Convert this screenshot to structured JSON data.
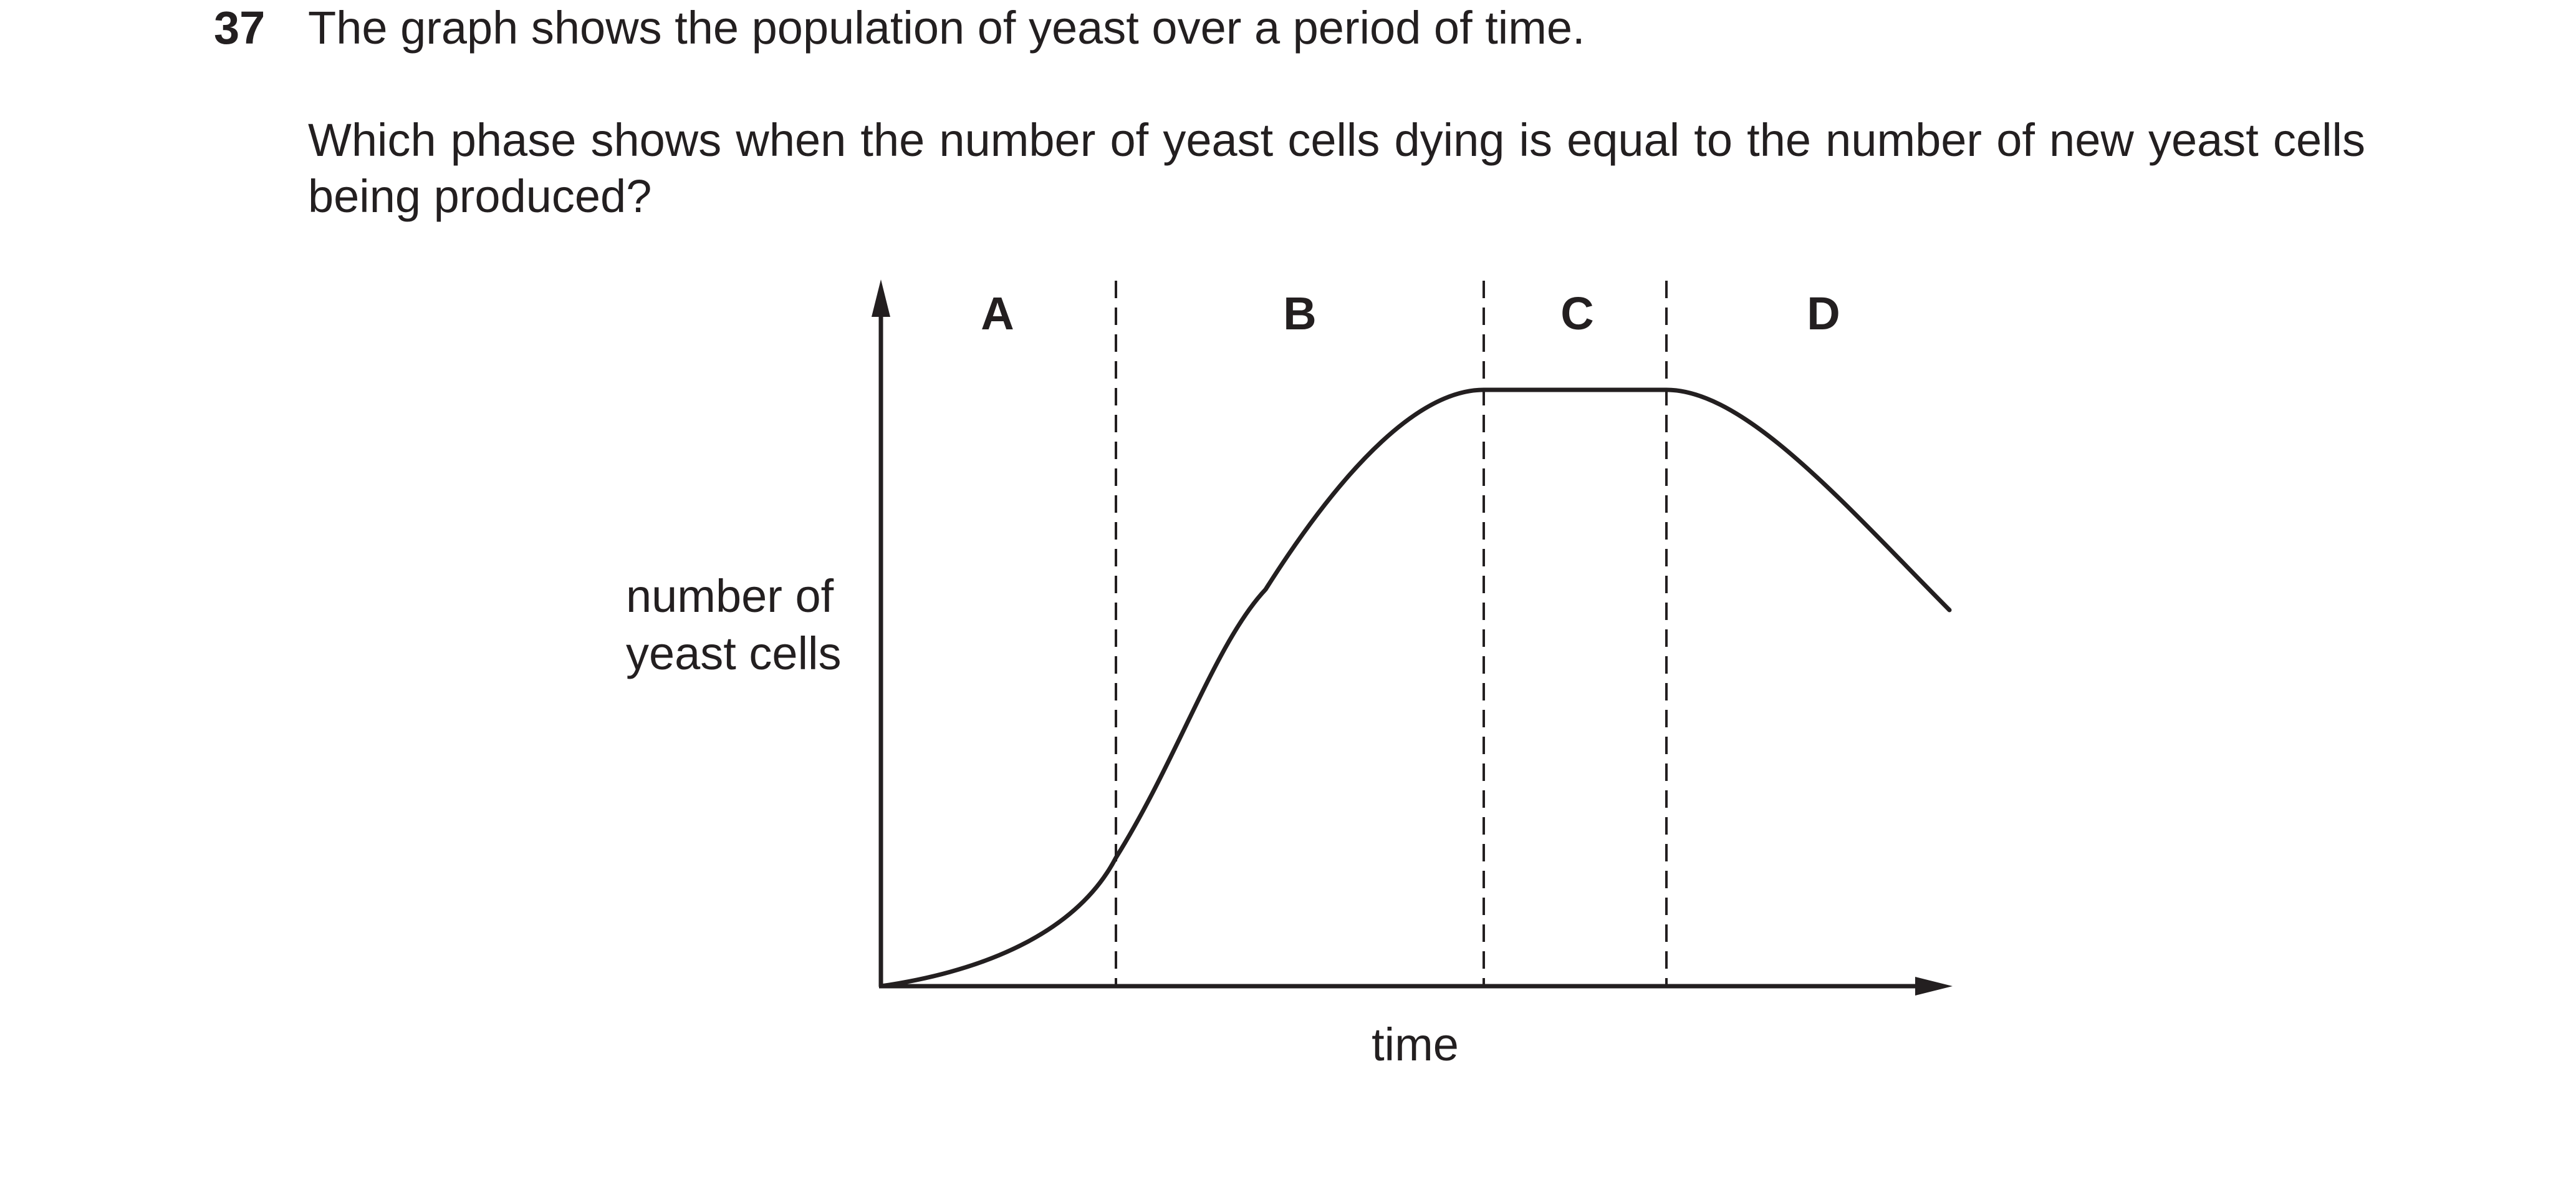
{
  "question": {
    "number": "37",
    "intro": "The graph shows the population of yeast over a period of time.",
    "prompt": "Which phase shows when the number of yeast cells dying is equal to the number of new yeast cells being produced?"
  },
  "graph": {
    "y_label_line1": "number of",
    "y_label_line2": "yeast cells",
    "x_label": "time",
    "phases": [
      "A",
      "B",
      "C",
      "D"
    ]
  }
}
